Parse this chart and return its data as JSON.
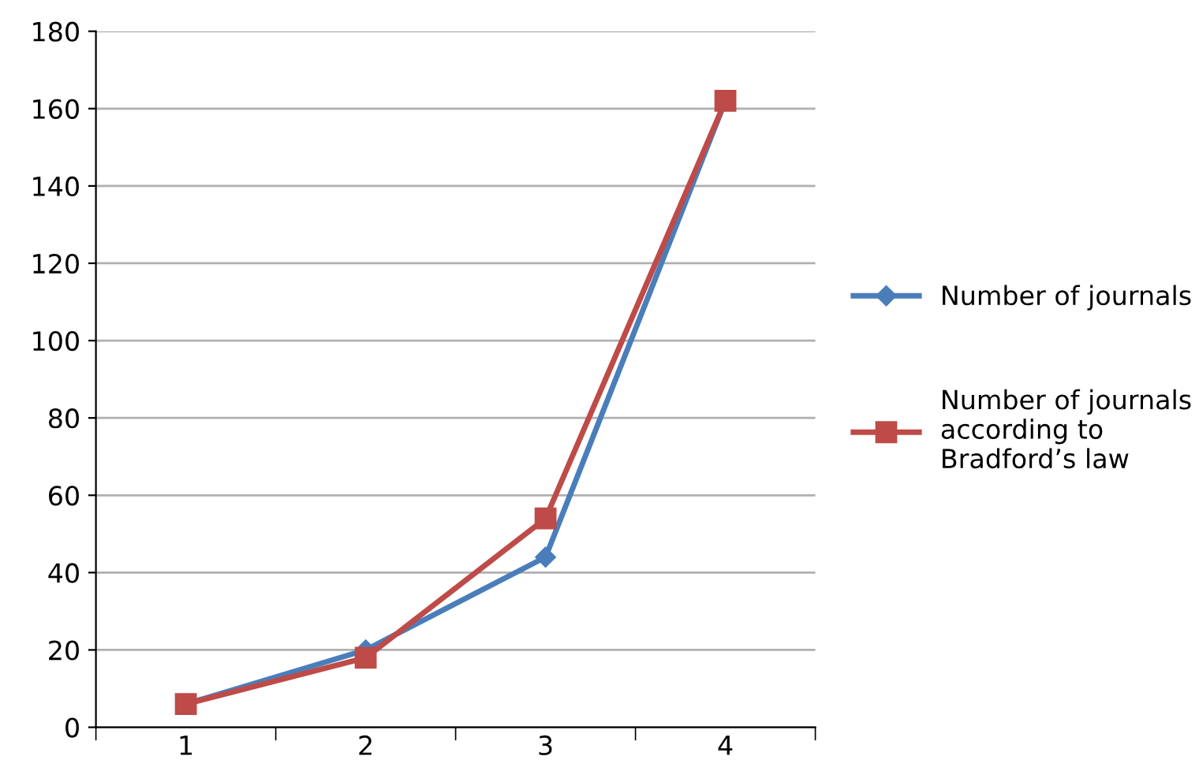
{
  "chart_data": {
    "type": "line",
    "categories": [
      "1",
      "2",
      "3",
      "4"
    ],
    "series": [
      {
        "name": "Number of journals",
        "color": "#4a7ebb",
        "marker": "diamond",
        "values": [
          6,
          20,
          44,
          162
        ]
      },
      {
        "name": "Number of journals\naccording to\nBradford’s law",
        "color": "#be4b48",
        "marker": "square",
        "values": [
          6,
          18,
          54,
          162
        ]
      }
    ],
    "ylim": [
      0,
      180
    ],
    "yticks": [
      0,
      20,
      40,
      60,
      80,
      100,
      120,
      140,
      160,
      180
    ],
    "grid": "y",
    "legend": "right",
    "line_style": "solid"
  }
}
